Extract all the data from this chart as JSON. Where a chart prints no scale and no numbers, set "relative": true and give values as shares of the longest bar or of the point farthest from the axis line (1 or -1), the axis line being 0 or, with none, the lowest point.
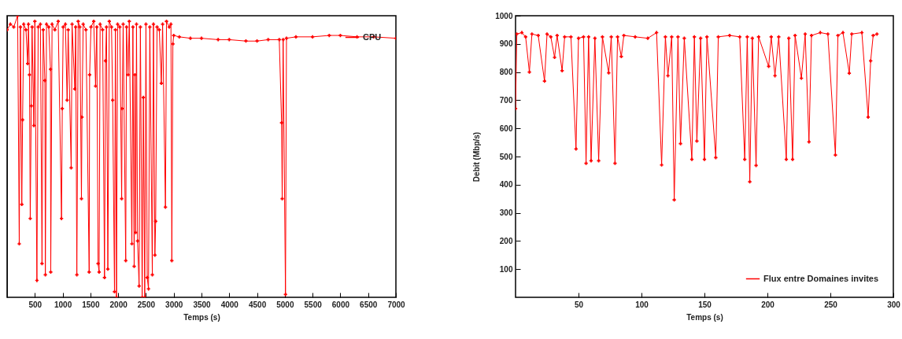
{
  "chart_data": [
    {
      "type": "line",
      "relative": true,
      "xlabel": "Temps (s)",
      "xlim": [
        0,
        7000
      ],
      "xticks": [
        500,
        1000,
        1500,
        2000,
        2500,
        3000,
        3500,
        4000,
        4500,
        5000,
        5500,
        6000,
        6500,
        7000
      ],
      "tick_labels": "x",
      "legend": "top right",
      "marker": "cross",
      "x": [
        0,
        60,
        120,
        190,
        219,
        240,
        265,
        279,
        300,
        340,
        371,
        385,
        403,
        417,
        435,
        450,
        482,
        500,
        537,
        560,
        600,
        629,
        650,
        680,
        689,
        710,
        750,
        781,
        786,
        810,
        860,
        920,
        980,
        994,
        1010,
        1050,
        1081,
        1100,
        1154,
        1170,
        1219,
        1235,
        1256,
        1280,
        1310,
        1339,
        1348,
        1370,
        1420,
        1478,
        1486,
        1510,
        1560,
        1593,
        1615,
        1638,
        1657,
        1675,
        1720,
        1754,
        1772,
        1790,
        1814,
        1840,
        1880,
        1901,
        1934,
        1950,
        1970,
        1990,
        2030,
        2063,
        2072,
        2090,
        2136,
        2150,
        2177,
        2200,
        2247,
        2265,
        2288,
        2302,
        2316,
        2330,
        2349,
        2377,
        2400,
        2432,
        2454,
        2478,
        2500,
        2523,
        2546,
        2570,
        2615,
        2635,
        2661,
        2675,
        2700,
        2740,
        2777,
        2800,
        2851,
        2870,
        2920,
        2950,
        2966,
        2985,
        3000,
        3100,
        3300,
        3500,
        3800,
        4000,
        4300,
        4500,
        4700,
        4900,
        4942,
        4953,
        4970,
        5012,
        5030,
        5200,
        5500,
        5800,
        6000,
        6300,
        6600,
        7000
      ],
      "series": [
        {
          "name": "CPU",
          "color": "#ff0000",
          "values": [
            0.95,
            0.97,
            0.96,
            1,
            0.19,
            0.96,
            0.33,
            0.63,
            0.97,
            0.95,
            0.83,
            0.97,
            0.79,
            0.28,
            0.68,
            0.96,
            0.61,
            0.98,
            0.06,
            0.96,
            0.97,
            0.12,
            0.95,
            0.77,
            0.08,
            0.97,
            0.96,
            0.81,
            0.09,
            0.97,
            0.95,
            0.98,
            0.28,
            0.67,
            0.96,
            0.97,
            0.7,
            0.95,
            0.46,
            0.97,
            0.74,
            0.96,
            0.08,
            0.98,
            0.96,
            0.35,
            0.64,
            0.97,
            0.95,
            0.09,
            0.79,
            0.96,
            0.98,
            0.75,
            0.96,
            0.12,
            0.09,
            0.97,
            0.95,
            0.07,
            0.84,
            0.96,
            0.1,
            0.98,
            0.96,
            0.7,
            0.02,
            0.95,
            0,
            0.97,
            0.96,
            0.35,
            0.67,
            0.97,
            0.13,
            0.96,
            0.79,
            0.98,
            0.19,
            0.96,
            0.11,
            0.79,
            0.23,
            0.97,
            0.2,
            0.04,
            0.96,
            0,
            0.71,
            0,
            0.97,
            0.07,
            0.03,
            0.96,
            0.08,
            0.97,
            0.15,
            0.27,
            0.96,
            0.95,
            0.76,
            0.97,
            0.32,
            0.98,
            0.96,
            0.97,
            0.13,
            0.9,
            0.93,
            0.925,
            0.92,
            0.92,
            0.915,
            0.915,
            0.91,
            0.91,
            0.915,
            0.915,
            0.62,
            0.35,
            0.915,
            0.01,
            0.92,
            0.925,
            0.925,
            0.93,
            0.93,
            0.925,
            0.925,
            0.92
          ]
        }
      ]
    },
    {
      "type": "line",
      "xlabel": "Temps (s)",
      "ylabel": "Debit (Mbp/s)",
      "xlim": [
        0,
        300
      ],
      "xticks": [
        50,
        100,
        150,
        200,
        250,
        300
      ],
      "ylim": [
        0,
        1000
      ],
      "yticks": [
        100,
        200,
        300,
        400,
        500,
        600,
        700,
        800,
        900,
        1000
      ],
      "legend": "bottom right",
      "marker": "cross",
      "x": [
        0,
        1,
        5,
        8,
        11,
        13,
        18,
        23,
        25,
        28,
        31,
        33,
        37,
        39,
        44,
        48,
        50,
        54,
        56,
        58,
        60,
        63,
        66,
        69,
        74,
        76,
        79,
        81,
        84,
        86,
        95,
        105,
        112,
        116,
        119,
        121,
        124,
        126,
        129,
        131,
        134,
        140,
        142,
        144,
        147,
        150,
        152,
        159,
        161,
        170,
        178,
        182,
        184,
        186,
        188,
        191,
        193,
        201,
        203,
        206,
        209,
        215,
        217,
        220,
        222,
        227,
        230,
        233,
        235,
        242,
        248,
        254,
        256,
        260,
        265,
        267,
        275,
        280,
        282,
        284,
        287
      ],
      "series": [
        {
          "name": "Flux entre Domaines invites",
          "color": "#ff0000",
          "values": [
            670,
            935,
            940,
            925,
            800,
            935,
            930,
            768,
            935,
            925,
            852,
            930,
            805,
            925,
            925,
            527,
            920,
            925,
            476,
            925,
            485,
            920,
            485,
            925,
            797,
            925,
            476,
            925,
            855,
            930,
            925,
            920,
            940,
            470,
            925,
            787,
            925,
            346,
            925,
            546,
            920,
            490,
            925,
            555,
            920,
            490,
            925,
            496,
            925,
            930,
            925,
            490,
            925,
            410,
            920,
            468,
            925,
            820,
            925,
            787,
            925,
            490,
            920,
            490,
            930,
            778,
            935,
            552,
            930,
            940,
            935,
            505,
            930,
            940,
            796,
            935,
            940,
            640,
            840,
            930,
            935
          ]
        }
      ]
    }
  ]
}
